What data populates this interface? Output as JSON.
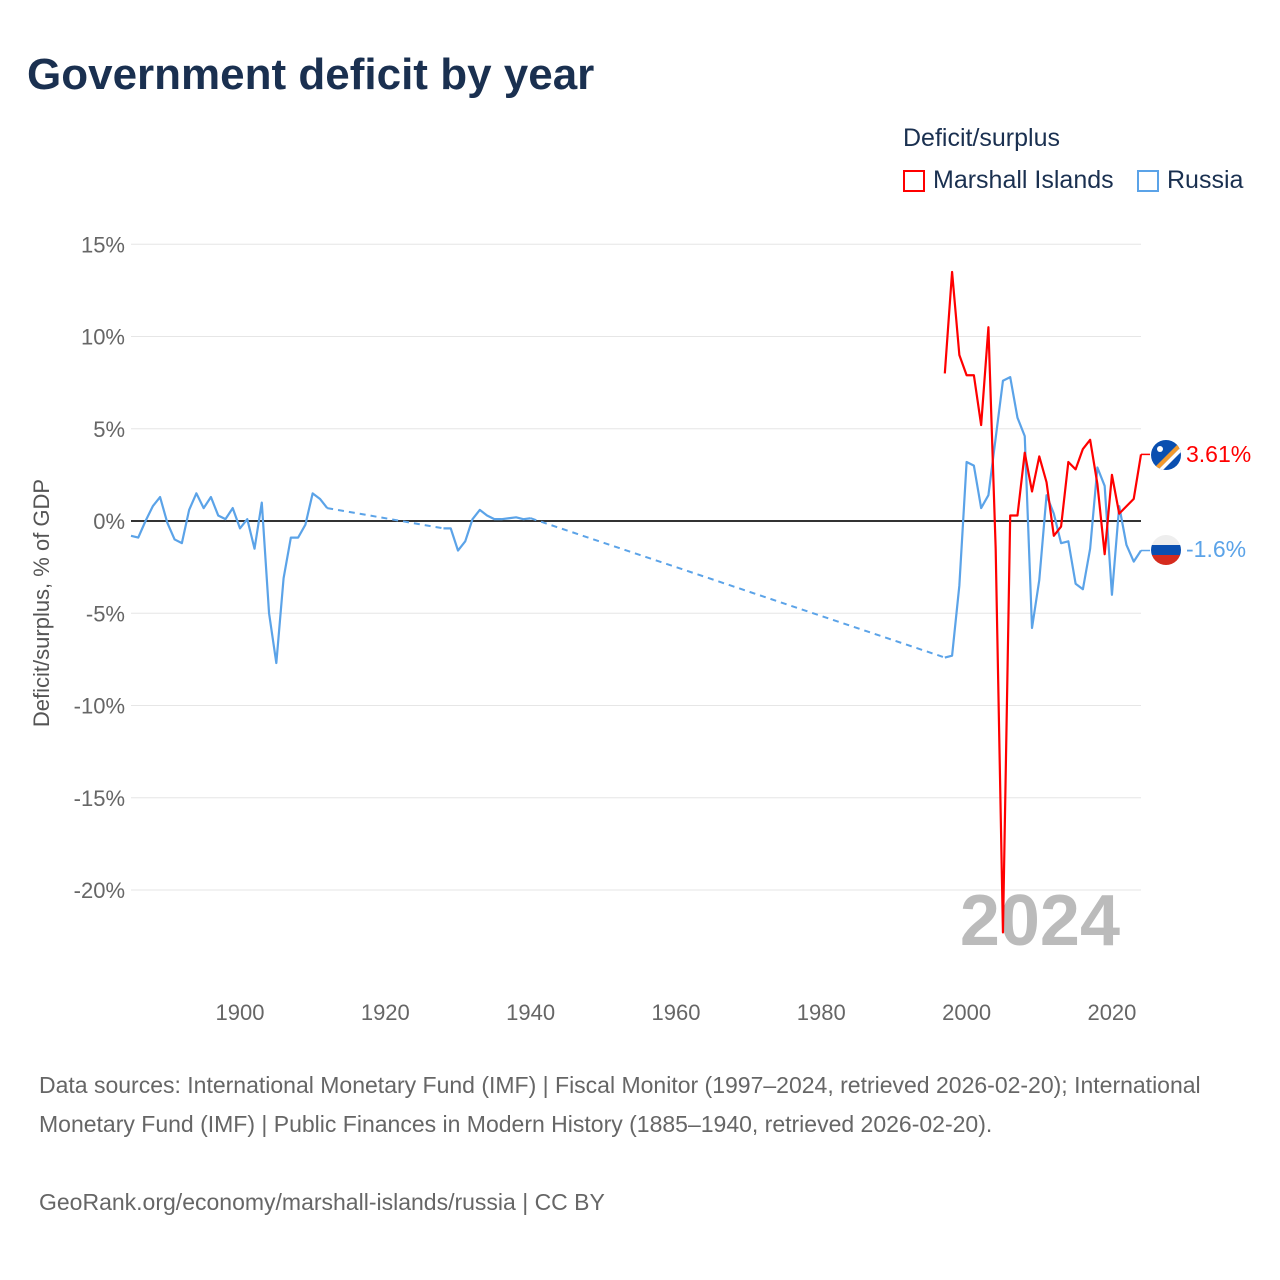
{
  "title": "Government deficit by year",
  "legend": {
    "title": "Deficit/surplus",
    "items": [
      {
        "name": "Marshall Islands",
        "color": "#ff0000"
      },
      {
        "name": "Russia",
        "color": "#5ba3e8"
      }
    ]
  },
  "year_watermark": "2024",
  "end_labels": {
    "marshall": "3.61%",
    "russia": "-1.6%"
  },
  "footer": {
    "sources": "Data sources: International Monetary Fund (IMF) | Fiscal Monitor (1997–2024, retrieved 2026-02-20); International Monetary Fund (IMF) | Public Finances in Modern History (1885–1940, retrieved 2026-02-20).",
    "credit": "GeoRank.org/economy/marshall-islands/russia | CC BY"
  },
  "chart_data": {
    "type": "line",
    "title": "Government deficit by year",
    "xlabel": "",
    "ylabel": "Deficit/surplus, % of GDP",
    "xlim": [
      1885,
      2024
    ],
    "ylim": [
      -25,
      15
    ],
    "yticks": [
      15,
      10,
      5,
      0,
      -5,
      -10,
      -15,
      -20
    ],
    "ytick_labels": [
      "15%",
      "10%",
      "5%",
      "0%",
      "-5%",
      "-10%",
      "-15%",
      "-20%"
    ],
    "xticks": [
      1900,
      1920,
      1940,
      1960,
      1980,
      2000,
      2020
    ],
    "xtick_labels": [
      "1900",
      "1920",
      "1940",
      "1960",
      "1980",
      "2000",
      "2020"
    ],
    "grid": true,
    "legend_position": "top-right",
    "series": [
      {
        "name": "Russia",
        "color": "#5ba3e8",
        "points": [
          [
            1885,
            -0.8
          ],
          [
            1886,
            -0.9
          ],
          [
            1887,
            0
          ],
          [
            1888,
            0.8
          ],
          [
            1889,
            1.3
          ],
          [
            1890,
            -0.1
          ],
          [
            1891,
            -1.0
          ],
          [
            1892,
            -1.2
          ],
          [
            1893,
            0.6
          ],
          [
            1894,
            1.5
          ],
          [
            1895,
            0.7
          ],
          [
            1896,
            1.3
          ],
          [
            1897,
            0.3
          ],
          [
            1898,
            0.1
          ],
          [
            1899,
            0.7
          ],
          [
            1900,
            -0.4
          ],
          [
            1901,
            0.1
          ],
          [
            1902,
            -1.5
          ],
          [
            1903,
            1.0
          ],
          [
            1904,
            -5.0
          ],
          [
            1905,
            -7.7
          ],
          [
            1906,
            -3.1
          ],
          [
            1907,
            -0.9
          ],
          [
            1908,
            -0.9
          ],
          [
            1909,
            -0.2
          ],
          [
            1910,
            1.5
          ],
          [
            1911,
            1.2
          ],
          [
            1912,
            0.7
          ],
          null,
          [
            1928,
            -0.4
          ],
          [
            1929,
            -0.4
          ],
          [
            1930,
            -1.6
          ],
          [
            1931,
            -1.1
          ],
          [
            1932,
            0.1
          ],
          [
            1933,
            0.6
          ],
          [
            1934,
            0.3
          ],
          [
            1935,
            0.1
          ],
          [
            1936,
            0.1
          ],
          [
            1937,
            0.15
          ],
          [
            1938,
            0.2
          ],
          [
            1939,
            0.1
          ],
          [
            1940,
            0.15
          ],
          null,
          [
            1997,
            -7.4
          ],
          [
            1998,
            -7.3
          ],
          [
            1999,
            -3.5
          ],
          [
            2000,
            3.2
          ],
          [
            2001,
            3.0
          ],
          [
            2002,
            0.7
          ],
          [
            2003,
            1.4
          ],
          [
            2004,
            4.5
          ],
          [
            2005,
            7.6
          ],
          [
            2006,
            7.8
          ],
          [
            2007,
            5.6
          ],
          [
            2008,
            4.6
          ],
          [
            2009,
            -5.8
          ],
          [
            2010,
            -3.2
          ],
          [
            2011,
            1.4
          ],
          [
            2012,
            0.4
          ],
          [
            2013,
            -1.2
          ],
          [
            2014,
            -1.1
          ],
          [
            2015,
            -3.4
          ],
          [
            2016,
            -3.7
          ],
          [
            2017,
            -1.5
          ],
          [
            2018,
            2.9
          ],
          [
            2019,
            1.9
          ],
          [
            2020,
            -4.0
          ],
          [
            2021,
            0.8
          ],
          [
            2022,
            -1.3
          ],
          [
            2023,
            -2.2
          ],
          [
            2024,
            -1.6
          ]
        ]
      },
      {
        "name": "Marshall Islands",
        "color": "#ff0000",
        "points": [
          [
            1997,
            8.0
          ],
          [
            1998,
            13.5
          ],
          [
            1999,
            9.0
          ],
          [
            2000,
            7.9
          ],
          [
            2001,
            7.9
          ],
          [
            2002,
            5.2
          ],
          [
            2003,
            10.5
          ],
          [
            2004,
            -1.5
          ],
          [
            2005,
            -22.3
          ],
          [
            2006,
            0.3
          ],
          [
            2007,
            0.3
          ],
          [
            2008,
            3.7
          ],
          [
            2009,
            1.6
          ],
          [
            2010,
            3.5
          ],
          [
            2011,
            2.1
          ],
          [
            2012,
            -0.8
          ],
          [
            2013,
            -0.3
          ],
          [
            2014,
            3.2
          ],
          [
            2015,
            2.8
          ],
          [
            2016,
            3.9
          ],
          [
            2017,
            4.4
          ],
          [
            2018,
            2.0
          ],
          [
            2019,
            -1.8
          ],
          [
            2020,
            2.5
          ],
          [
            2021,
            0.4
          ],
          [
            2022,
            0.8
          ],
          [
            2023,
            1.2
          ],
          [
            2024,
            3.61
          ]
        ]
      }
    ]
  }
}
